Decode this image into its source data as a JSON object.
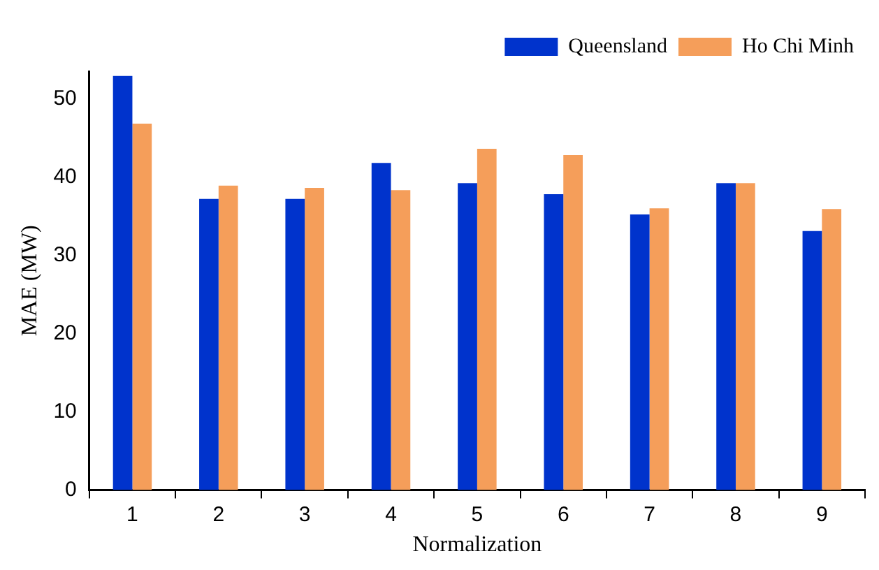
{
  "chart_data": {
    "type": "bar",
    "xlabel": "Normalization",
    "ylabel": "MAE (MW)",
    "categories": [
      "1",
      "2",
      "3",
      "4",
      "5",
      "6",
      "7",
      "8",
      "9"
    ],
    "series": [
      {
        "name": "Queensland",
        "color": "#0033cc",
        "values": [
          52.9,
          37.2,
          37.2,
          41.8,
          39.2,
          37.8,
          35.2,
          39.2,
          33.1
        ]
      },
      {
        "name": "Ho Chi Minh",
        "color": "#f59e5a",
        "values": [
          46.8,
          38.9,
          38.6,
          38.3,
          43.6,
          42.8,
          36.0,
          39.2,
          35.9
        ]
      }
    ],
    "ylim": [
      0,
      53.5
    ],
    "yticks": [
      0,
      10,
      20,
      30,
      40,
      50
    ],
    "grid": false,
    "legend": "top right"
  }
}
